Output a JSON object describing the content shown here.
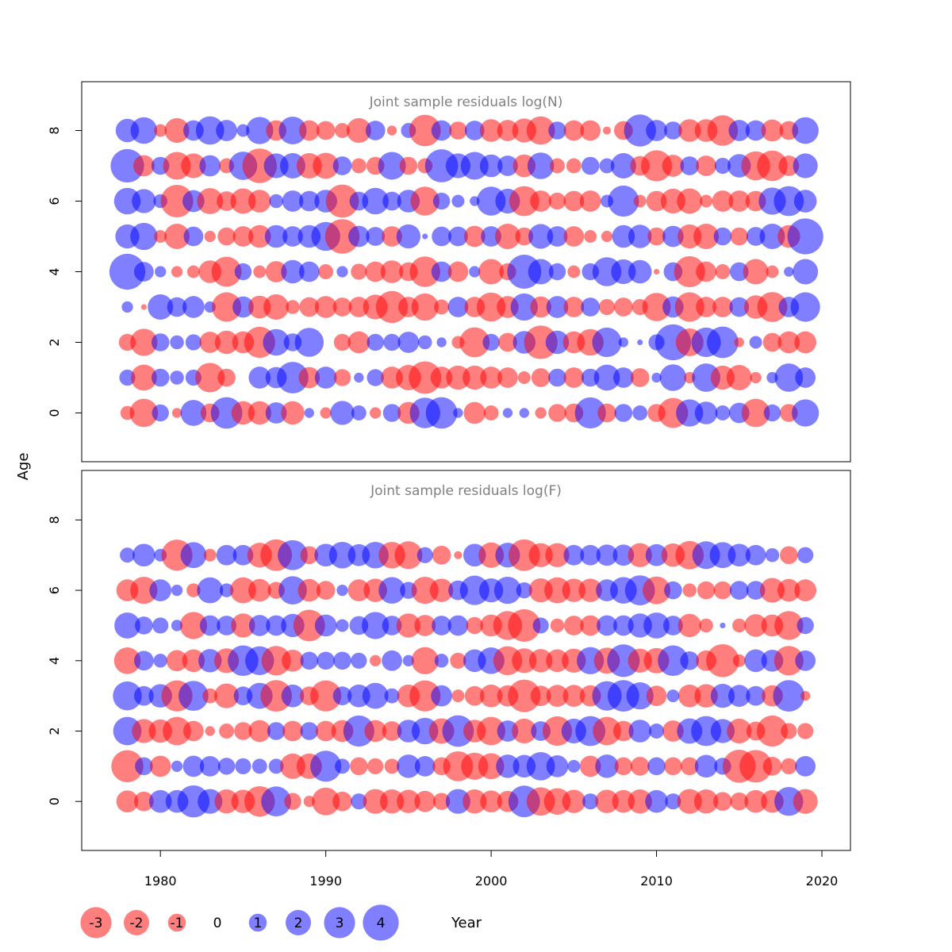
{
  "chart_data": {
    "type": "scatter",
    "subtype": "bubble residual plot",
    "xlabel": "Year",
    "ylabel": "Age",
    "xlim": [
      1975,
      2022
    ],
    "x_ticks": [
      1980,
      1990,
      2000,
      2010,
      2020
    ],
    "y_ticks": [
      0,
      2,
      4,
      6,
      8
    ],
    "ylim": [
      -1.4,
      9.4
    ],
    "colors": {
      "negative": "#ff0000",
      "positive": "#0000ff"
    },
    "legend": {
      "placement": "bottom",
      "entries": [
        {
          "label": "-3",
          "value": -3
        },
        {
          "label": "-2",
          "value": -2
        },
        {
          "label": "-1",
          "value": -1
        },
        {
          "label": "0",
          "value": 0
        },
        {
          "label": "1",
          "value": 1
        },
        {
          "label": "2",
          "value": 2
        },
        {
          "label": "3",
          "value": 3
        },
        {
          "label": "4",
          "value": 4
        }
      ]
    },
    "panels": [
      {
        "title": "Joint sample residuals log(N)",
        "years": [
          1978,
          1979,
          1980,
          1981,
          1982,
          1983,
          1984,
          1985,
          1986,
          1987,
          1988,
          1989,
          1990,
          1991,
          1992,
          1993,
          1994,
          1995,
          1996,
          1997,
          1998,
          1999,
          2000,
          2001,
          2002,
          2003,
          2004,
          2005,
          2006,
          2007,
          2008,
          2009,
          2010,
          2011,
          2012,
          2013,
          2014,
          2015,
          2016,
          2017,
          2018,
          2019
        ],
        "ages": [
          0,
          1,
          2,
          3,
          4,
          5,
          6,
          7,
          8
        ],
        "residuals": [
          [
            -0.6,
            -2.5,
            0.9,
            -0.3,
            2.1,
            -1.1,
            3.1,
            -1.7,
            -1.7,
            1.4,
            -1.7,
            0.3,
            -0.4,
            1.8,
            0.7,
            -0.4,
            1.0,
            -1.5,
            2.9,
            3.1,
            0.3,
            -1.5,
            -0.7,
            0.3,
            0.3,
            -0.4,
            -1.0,
            -1.1,
            3.0,
            -1.1,
            1.0,
            0.7,
            -1.0,
            -2.8,
            2.3,
            1.6,
            0.7,
            1.3,
            -2.5,
            0.9,
            -1.0,
            2.3
          ],
          [
            0.8,
            -2.1,
            1.0,
            0.6,
            0.8,
            -2.7,
            -1.0,
            0.0,
            1.5,
            1.4,
            3.1,
            -1.4,
            1.5,
            -0.9,
            0.3,
            0.9,
            -1.5,
            -2.0,
            -3.3,
            -1.5,
            -1.8,
            -1.8,
            -1.5,
            -1.3,
            -0.5,
            -1.1,
            1.0,
            -1.3,
            1.0,
            2.1,
            1.3,
            -1.1,
            0.3,
            2.2,
            -0.4,
            2.5,
            -1.8,
            -2.0,
            -0.4,
            0.4,
            2.5,
            1.3
          ],
          [
            -0.9,
            -2.3,
            1.0,
            0.6,
            0.8,
            -1.4,
            -1.7,
            -1.5,
            -3.0,
            2.2,
            1.0,
            2.6,
            0.0,
            -0.9,
            -1.5,
            0.9,
            0.9,
            1.4,
            0.6,
            0.3,
            -0.5,
            -2.8,
            0.9,
            -1.1,
            1.6,
            -3.5,
            1.7,
            -1.5,
            -2.2,
            2.7,
            0.3,
            0.1,
            0.8,
            4.0,
            -2.4,
            2.7,
            3.1,
            -0.3,
            0.5,
            -1.1,
            -1.5,
            -1.5
          ],
          [
            0.4,
            -0.1,
            2.0,
            1.2,
            1.5,
            0.4,
            -2.7,
            1.4,
            -1.6,
            -2.0,
            -0.6,
            -1.2,
            -1.5,
            -1.1,
            -1.3,
            -1.9,
            -3.2,
            -1.3,
            -2.3,
            -0.7,
            1.3,
            -1.3,
            -2.6,
            -1.5,
            2.3,
            -1.4,
            1.5,
            -1.3,
            1.1,
            -0.8,
            -1.1,
            -0.8,
            -2.5,
            1.4,
            -2.7,
            -1.3,
            -1.3,
            1.2,
            -1.7,
            -2.8,
            1.3,
            2.7
          ],
          [
            4.0,
            1.2,
            0.4,
            -0.4,
            -0.5,
            -1.6,
            -2.8,
            0.9,
            -0.5,
            -1.4,
            1.7,
            1.3,
            -0.7,
            0.4,
            -0.8,
            -1.3,
            -1.6,
            -1.1,
            -2.9,
            1.3,
            -1.3,
            0.4,
            -2.0,
            -0.9,
            3.6,
            2.0,
            0.9,
            -0.5,
            0.9,
            2.6,
            1.9,
            1.7,
            -0.1,
            1.1,
            -3.0,
            -1.3,
            -0.7,
            1.1,
            -2.0,
            -0.5,
            0.3,
            2.0
          ],
          [
            1.8,
            2.3,
            -0.5,
            -2.0,
            1.2,
            -0.4,
            -1.0,
            -1.3,
            -1.6,
            1.6,
            1.3,
            1.6,
            2.6,
            -3.7,
            1.4,
            1.1,
            -1.3,
            1.8,
            0.1,
            1.2,
            1.2,
            -1.4,
            1.3,
            -2.0,
            -1.0,
            1.9,
            1.3,
            -1.3,
            -0.5,
            -0.4,
            1.6,
            1.7,
            -1.0,
            1.4,
            -1.8,
            -2.0,
            1.0,
            -1.0,
            1.1,
            2.0,
            -1.6,
            4.0
          ],
          [
            2.2,
            1.8,
            0.6,
            -3.3,
            1.5,
            -2.1,
            -1.2,
            -2.0,
            -1.6,
            0.6,
            1.4,
            1.3,
            1.6,
            -3.4,
            1.1,
            2.2,
            1.1,
            1.6,
            -2.6,
            0.9,
            0.5,
            0.3,
            2.6,
            1.9,
            -2.8,
            -1.4,
            -0.9,
            -1.3,
            -1.4,
            0.5,
            3.0,
            -0.5,
            -1.3,
            -1.9,
            -2.0,
            -0.5,
            -1.4,
            -1.4,
            -1.3,
            2.3,
            2.8,
            1.6
          ],
          [
            3.5,
            -1.4,
            1.0,
            -2.4,
            -1.9,
            1.4,
            -0.7,
            2.5,
            -3.7,
            1.9,
            2.0,
            -2.0,
            -2.1,
            1.1,
            -0.7,
            -1.0,
            2.4,
            -1.0,
            -0.7,
            3.4,
            1.9,
            2.4,
            1.6,
            1.3,
            -1.6,
            2.2,
            -0.7,
            -0.7,
            1.0,
            0.7,
            2.0,
            -1.2,
            -3.0,
            -1.5,
            1.1,
            -1.3,
            0.8,
            1.7,
            -2.6,
            -2.9,
            -1.3,
            1.9
          ],
          [
            1.7,
            2.2,
            -0.5,
            -1.9,
            1.3,
            2.5,
            1.4,
            0.5,
            2.3,
            -1.3,
            2.4,
            -1.3,
            -1.1,
            -0.7,
            -1.9,
            1.2,
            -0.3,
            0.7,
            -3.1,
            1.3,
            -1.0,
            1.2,
            -1.6,
            -1.4,
            -1.8,
            -2.5,
            1.0,
            -1.3,
            -1.3,
            -0.2,
            -1.1,
            3.2,
            1.4,
            1.0,
            -1.6,
            -1.6,
            -2.9,
            1.4,
            1.3,
            -1.5,
            -1.1,
            2.2
          ]
        ]
      },
      {
        "title": "Joint sample residuals log(F)",
        "years": [
          1978,
          1979,
          1980,
          1981,
          1982,
          1983,
          1984,
          1985,
          1986,
          1987,
          1988,
          1989,
          1990,
          1991,
          1992,
          1993,
          1994,
          1995,
          1996,
          1997,
          1998,
          1999,
          2000,
          2001,
          2002,
          2003,
          2004,
          2005,
          2006,
          2007,
          2008,
          2009,
          2010,
          2011,
          2012,
          2013,
          2014,
          2015,
          2016,
          2017,
          2018,
          2019
        ],
        "ages": [
          0,
          1,
          2,
          3,
          4,
          5,
          6,
          7
        ],
        "residuals": [
          [
            -1.5,
            -1.2,
            1.6,
            1.6,
            3.2,
            1.9,
            -1.8,
            -1.7,
            -2.9,
            2.8,
            -0.9,
            -0.4,
            -2.4,
            -1.2,
            0.8,
            -1.9,
            -1.8,
            -1.7,
            -1.4,
            -0.9,
            1.9,
            -1.8,
            -1.5,
            -1.4,
            3.1,
            -2.5,
            -2.2,
            -1.7,
            0.8,
            -1.7,
            -1.6,
            -1.8,
            1.6,
            0.8,
            -1.9,
            -1.8,
            -1.1,
            -1.0,
            -1.6,
            -1.6,
            2.6,
            -1.9
          ],
          [
            -3.2,
            1.0,
            -1.4,
            0.4,
            1.4,
            1.3,
            0.9,
            0.8,
            0.7,
            0.7,
            -2.0,
            -2.0,
            3.0,
            0.7,
            -1.0,
            -0.8,
            -0.7,
            1.7,
            1.3,
            -1.0,
            -2.8,
            -2.3,
            -2.1,
            1.7,
            1.6,
            2.5,
            1.5,
            0.5,
            -1.4,
            1.7,
            -1.0,
            -1.1,
            1.0,
            -1.0,
            -1.0,
            1.6,
            0.9,
            -3.4,
            -3.3,
            -1.1,
            -0.8,
            1.3
          ],
          [
            2.5,
            -1.8,
            -1.7,
            -2.5,
            -1.3,
            -0.3,
            -0.7,
            -1.0,
            -1.5,
            1.0,
            -1.3,
            1.0,
            -1.3,
            -1.5,
            3.0,
            -1.5,
            -1.2,
            1.6,
            2.2,
            -2.0,
            3.1,
            -1.6,
            -2.5,
            1.4,
            -1.9,
            1.2,
            -2.7,
            1.9,
            2.8,
            -2.5,
            -1.3,
            1.6,
            0.7,
            -1.4,
            2.0,
            2.8,
            1.8,
            -1.9,
            -1.1,
            -3.0,
            -0.8,
            -0.8
          ],
          [
            2.6,
            1.2,
            1.7,
            -3.0,
            2.8,
            -0.7,
            -1.9,
            1.1,
            2.1,
            -3.1,
            1.6,
            -1.1,
            -3.0,
            1.1,
            1.6,
            2.1,
            0.7,
            -1.6,
            -3.0,
            1.4,
            -0.5,
            -1.2,
            -1.6,
            -1.4,
            -3.3,
            -1.3,
            -1.5,
            -1.5,
            -1.4,
            2.7,
            3.1,
            2.3,
            -1.3,
            0.5,
            -1.6,
            -1.7,
            1.8,
            1.5,
            1.2,
            -1.4,
            3.1,
            -0.3
          ],
          [
            -2.2,
            1.2,
            0.6,
            -1.4,
            -1.6,
            1.7,
            -1.9,
            2.9,
            2.6,
            -2.7,
            -1.5,
            1.0,
            1.0,
            1.0,
            0.8,
            -0.4,
            1.3,
            0.4,
            -2.3,
            0.6,
            -0.8,
            1.6,
            2.2,
            -2.6,
            -1.9,
            -1.7,
            -1.6,
            -1.8,
            2.3,
            -2.1,
            3.3,
            -1.8,
            -2.0,
            2.9,
            1.1,
            -1.3,
            -3.4,
            -0.5,
            1.6,
            1.5,
            -2.7,
            1.3
          ],
          [
            2.1,
            1.0,
            0.8,
            0.4,
            -2.3,
            1.3,
            1.2,
            -1.8,
            1.4,
            1.3,
            1.7,
            -3.1,
            1.5,
            0.5,
            1.1,
            2.3,
            1.2,
            -1.8,
            -1.4,
            1.2,
            1.3,
            -0.9,
            -1.5,
            -2.6,
            -3.3,
            0.8,
            -0.6,
            -1.2,
            -1.3,
            1.3,
            1.3,
            1.8,
            2.1,
            1.2,
            -1.7,
            -0.6,
            0.1,
            -0.6,
            -1.6,
            -1.5,
            -2.6,
            0.9
          ],
          [
            -1.5,
            -2.3,
            1.5,
            0.4,
            -0.6,
            2.1,
            0.6,
            -2.1,
            -1.6,
            -0.9,
            2.5,
            -1.6,
            -1.1,
            0.4,
            -1.5,
            -1.7,
            2.2,
            0.9,
            -2.3,
            -1.7,
            1.2,
            2.7,
            1.8,
            2.3,
            0.8,
            -1.8,
            -2.1,
            -1.7,
            -1.7,
            1.5,
            2.2,
            2.8,
            -2.4,
            1.0,
            -0.6,
            -1.0,
            -1.0,
            1.1,
            1.1,
            -1.9,
            -1.6,
            -1.5
          ],
          [
            0.7,
            1.6,
            0.5,
            -3.0,
            2.1,
            -0.5,
            1.3,
            1.3,
            -1.9,
            -3.1,
            2.8,
            -1.0,
            1.6,
            2.2,
            1.5,
            2.2,
            -2.2,
            -2.4,
            0.8,
            -1.1,
            -0.2,
            1.6,
            -2.0,
            1.9,
            -3.1,
            -1.8,
            -1.8,
            1.3,
            1.3,
            1.4,
            1.4,
            -1.8,
            1.5,
            -1.7,
            -2.5,
            2.4,
            2.1,
            1.6,
            1.3,
            0.6,
            -1.0,
            0.8
          ]
        ]
      }
    ]
  }
}
